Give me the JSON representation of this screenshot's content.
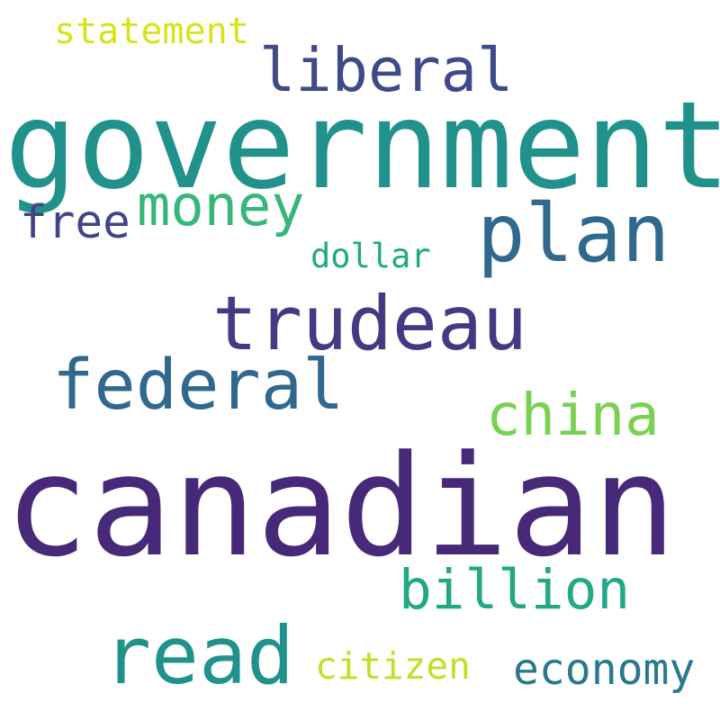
{
  "words": [
    {
      "text": "statement",
      "color": "#d8e219"
    },
    {
      "text": "liberal",
      "color": "#3e4a89"
    },
    {
      "text": "government",
      "color": "#21918c"
    },
    {
      "text": "money",
      "color": "#35b779"
    },
    {
      "text": "free",
      "color": "#414487"
    },
    {
      "text": "plan",
      "color": "#31688e"
    },
    {
      "text": "dollar",
      "color": "#22a884"
    },
    {
      "text": "trudeau",
      "color": "#443983"
    },
    {
      "text": "federal",
      "color": "#31688e"
    },
    {
      "text": "china",
      "color": "#7ad151"
    },
    {
      "text": "canadian",
      "color": "#482878"
    },
    {
      "text": "billion",
      "color": "#22a884"
    },
    {
      "text": "read",
      "color": "#21918c"
    },
    {
      "text": "citizen",
      "color": "#c2df23"
    },
    {
      "text": "economy",
      "color": "#2a788e"
    }
  ]
}
